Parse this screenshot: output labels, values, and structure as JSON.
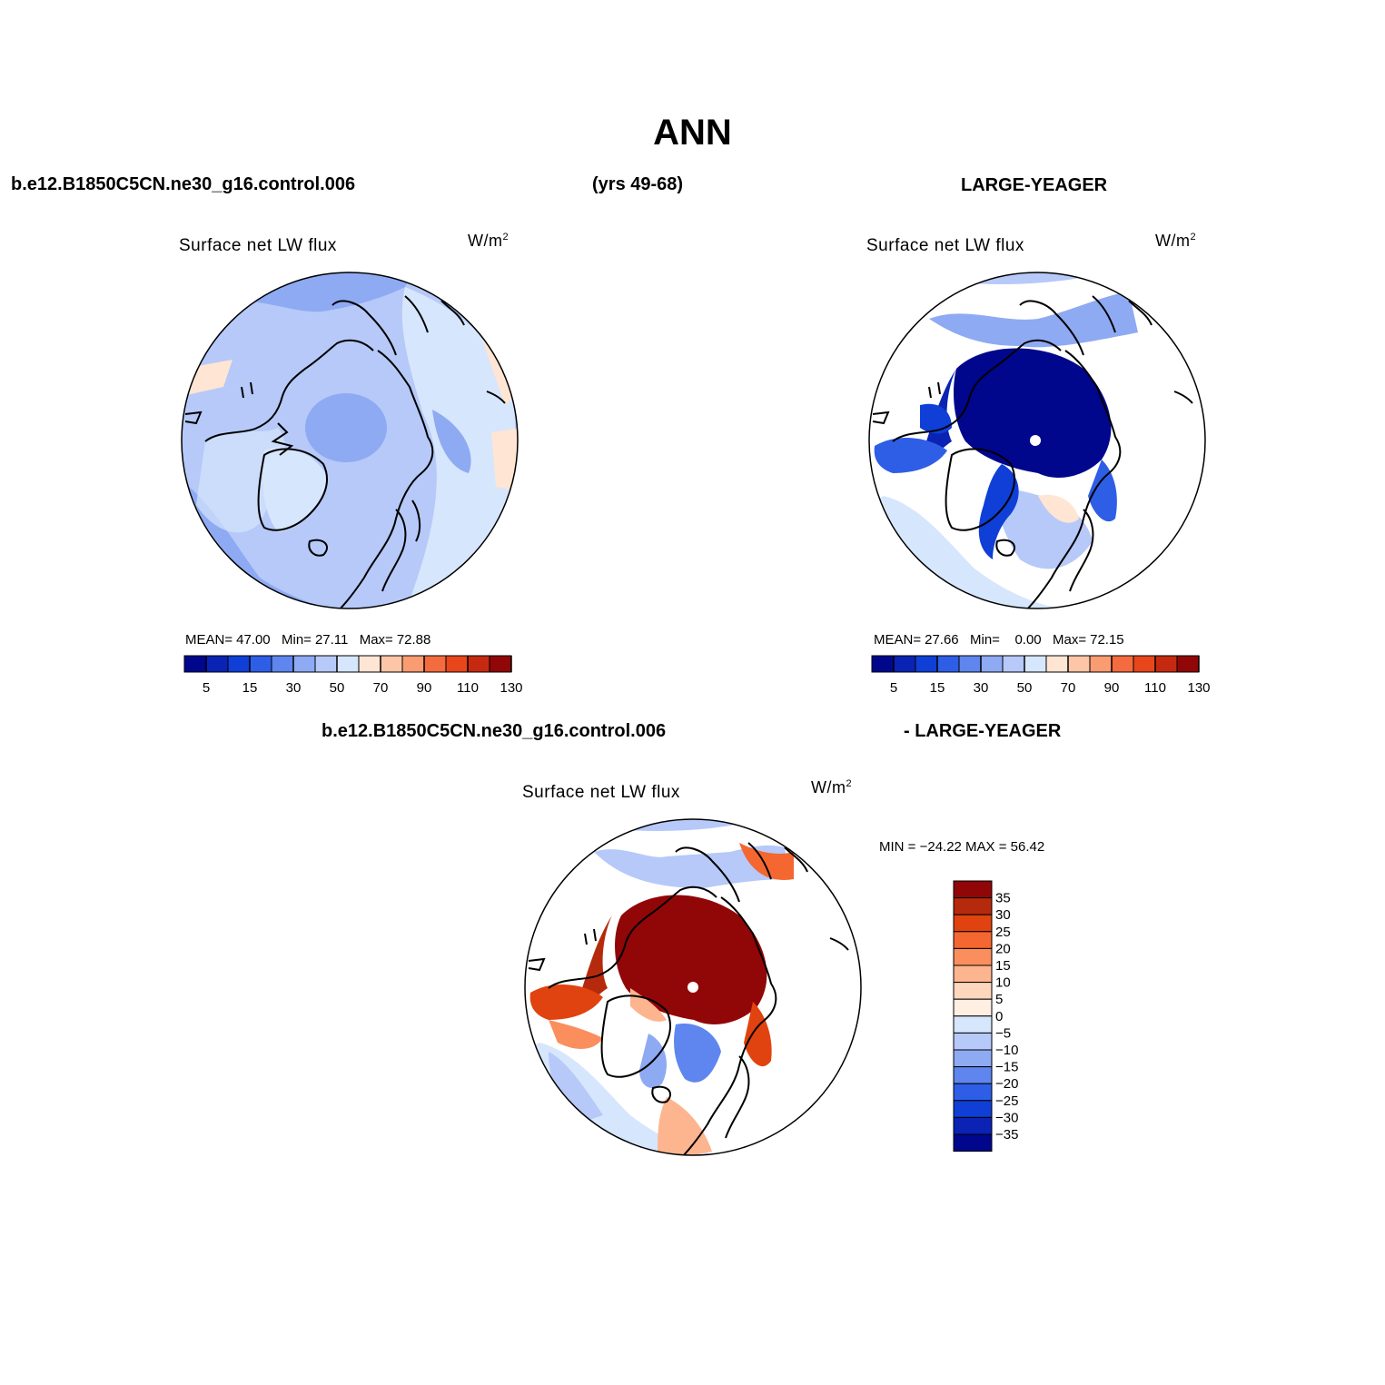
{
  "main_title": "ANN",
  "headers": {
    "case_name": "b.e12.B1850C5CN.ne30_g16.control.006",
    "years": "(yrs 49-68)",
    "obs_name": "LARGE-YEAGER",
    "diff_case": "b.e12.B1850C5CN.ne30_g16.control.006",
    "diff_obs": "- LARGE-YEAGER"
  },
  "panels": {
    "model": {
      "title": "Surface net LW flux",
      "units": "W/m",
      "units_sup": "2",
      "stats": {
        "mean_label": "MEAN=",
        "mean": "47.00",
        "min_label": "Min=",
        "min": "27.11",
        "max_label": "Max=",
        "max": "72.88"
      }
    },
    "obs": {
      "title": "Surface net LW flux",
      "units": "W/m",
      "units_sup": "2",
      "stats": {
        "mean_label": "MEAN=",
        "mean": "27.66",
        "min_label": "Min=",
        "min": "0.00",
        "max_label": "Max=",
        "max": "72.15"
      }
    },
    "diff": {
      "title": "Surface net LW flux",
      "units": "W/m",
      "units_sup": "2",
      "minmax": "MIN = −24.22 MAX =  56.42"
    }
  },
  "colorbars": {
    "abs": {
      "colors": [
        "#00078c",
        "#0a23b4",
        "#0f3fd6",
        "#2e5ee6",
        "#5f86ee",
        "#8eaaf3",
        "#b6c9f8",
        "#d6e6fc",
        "#ffe5d3",
        "#fdc6a8",
        "#fa9c72",
        "#f36b3e",
        "#e8461b",
        "#c52a10",
        "#910607"
      ],
      "tick_labels": [
        "5",
        "15",
        "30",
        "50",
        "70",
        "90",
        "110",
        "130"
      ]
    },
    "diff": {
      "colors": [
        "#910607",
        "#b52a0c",
        "#e0430f",
        "#f46730",
        "#fa8e5c",
        "#fdb58f",
        "#ffd7bd",
        "#ffeee2",
        "#d6e6fc",
        "#b6c9f8",
        "#8eaaf3",
        "#5f86ee",
        "#2e5ee6",
        "#0f3fd6",
        "#0a23b4",
        "#00078c"
      ],
      "tick_labels": [
        "35",
        "30",
        "25",
        "20",
        "15",
        "10",
        "5",
        "0",
        "−5",
        "−10",
        "−15",
        "−20",
        "−25",
        "−30",
        "−35"
      ]
    }
  }
}
